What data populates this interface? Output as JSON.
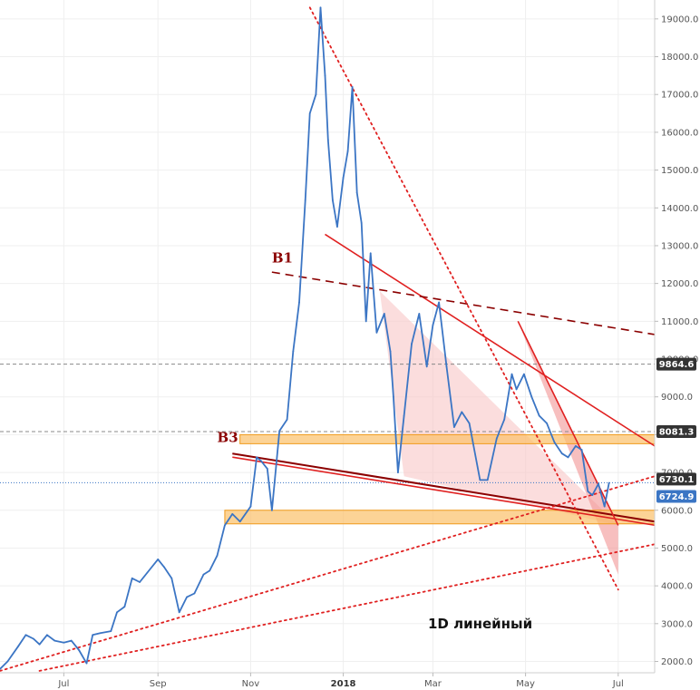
{
  "chart_data": {
    "type": "line",
    "title": "",
    "xlabel": "",
    "ylabel": "",
    "note": "1D  линейный",
    "ylim": [
      1700,
      19500
    ],
    "y_ticks": [
      2000,
      3000,
      4000,
      5000,
      6000,
      7000,
      8000,
      9000,
      10000,
      11000,
      12000,
      13000,
      14000,
      15000,
      16000,
      17000,
      18000,
      19000
    ],
    "y_tick_labels": [
      "2000.0",
      "3000.0",
      "4000.0",
      "5000.0",
      "6000.0",
      "7000.0",
      "8000.0",
      "9000.0",
      "10000.0",
      "11000.0",
      "12000.0",
      "13000.0",
      "14000.0",
      "15000.0",
      "16000.0",
      "17000.0",
      "18000.0",
      "19000.0"
    ],
    "x_range": [
      "2017-05-20",
      "2018-07-25"
    ],
    "x_ticks": [
      {
        "date": "2017-07-01",
        "label": "Jul",
        "bold": false
      },
      {
        "date": "2017-09-01",
        "label": "Sep",
        "bold": false
      },
      {
        "date": "2017-11-01",
        "label": "Nov",
        "bold": false
      },
      {
        "date": "2018-01-01",
        "label": "2018",
        "bold": true
      },
      {
        "date": "2018-03-01",
        "label": "Mar",
        "bold": false
      },
      {
        "date": "2018-05-01",
        "label": "May",
        "bold": false
      },
      {
        "date": "2018-07-01",
        "label": "Jul",
        "bold": false
      }
    ],
    "grid": true,
    "colors": {
      "price": "#3b75c4",
      "trend_red": "#e02020",
      "dark_red": "#8b0000",
      "zone_fill": "#fbc16a",
      "zone_border": "#f09a1c",
      "wedge_fill": "#f8c6c6",
      "channel_fill": "#f08a8a",
      "badge_dark": "#333333",
      "badge_blue": "#3b75c4"
    },
    "series": [
      {
        "x": [
          "2017-05-20",
          "2017-05-25",
          "2017-06-01",
          "2017-06-06",
          "2017-06-11",
          "2017-06-15",
          "2017-06-20",
          "2017-06-25",
          "2017-07-01",
          "2017-07-06",
          "2017-07-11",
          "2017-07-16",
          "2017-07-20",
          "2017-07-25",
          "2017-08-01",
          "2017-08-05",
          "2017-08-10",
          "2017-08-15",
          "2017-08-20",
          "2017-08-25",
          "2017-09-01",
          "2017-09-05",
          "2017-09-10",
          "2017-09-15",
          "2017-09-20",
          "2017-09-25",
          "2017-10-01",
          "2017-10-05",
          "2017-10-10",
          "2017-10-15",
          "2017-10-20",
          "2017-10-25",
          "2017-11-01",
          "2017-11-05",
          "2017-11-08",
          "2017-11-12",
          "2017-11-15",
          "2017-11-20",
          "2017-11-25",
          "2017-11-29",
          "2017-12-03",
          "2017-12-07",
          "2017-12-10",
          "2017-12-14",
          "2017-12-17",
          "2017-12-20",
          "2017-12-22",
          "2017-12-25",
          "2017-12-28",
          "2018-01-01",
          "2018-01-04",
          "2018-01-07",
          "2018-01-10",
          "2018-01-13",
          "2018-01-16",
          "2018-01-19",
          "2018-01-23",
          "2018-01-28",
          "2018-02-01",
          "2018-02-03",
          "2018-02-06",
          "2018-02-10",
          "2018-02-15",
          "2018-02-20",
          "2018-02-25",
          "2018-03-01",
          "2018-03-05",
          "2018-03-10",
          "2018-03-15",
          "2018-03-20",
          "2018-03-25",
          "2018-04-01",
          "2018-04-06",
          "2018-04-12",
          "2018-04-17",
          "2018-04-22",
          "2018-04-25",
          "2018-04-30",
          "2018-05-05",
          "2018-05-10",
          "2018-05-15",
          "2018-05-20",
          "2018-05-25",
          "2018-05-29",
          "2018-06-03",
          "2018-06-07",
          "2018-06-11",
          "2018-06-14",
          "2018-06-18",
          "2018-06-22",
          "2018-06-25"
        ],
        "y": [
          1800,
          2000,
          2400,
          2700,
          2600,
          2450,
          2700,
          2550,
          2500,
          2550,
          2300,
          1950,
          2700,
          2750,
          2800,
          3300,
          3450,
          4200,
          4100,
          4350,
          4700,
          4500,
          4200,
          3300,
          3700,
          3800,
          4300,
          4400,
          4800,
          5600,
          5900,
          5700,
          6100,
          7400,
          7300,
          7100,
          6000,
          8100,
          8400,
          10200,
          11500,
          14200,
          16500,
          17000,
          19300,
          17500,
          15800,
          14200,
          13500,
          14800,
          15500,
          17200,
          14400,
          13600,
          11000,
          12800,
          10700,
          11200,
          10200,
          9000,
          7000,
          8500,
          10400,
          11200,
          9800,
          10900,
          11500,
          9800,
          8200,
          8600,
          8300,
          6800,
          6800,
          7900,
          8400,
          9600,
          9200,
          9600,
          9000,
          8500,
          8300,
          7800,
          7500,
          7400,
          7700,
          7600,
          6500,
          6400,
          6700,
          6100,
          6724.9
        ]
      }
    ],
    "price_levels": [
      {
        "value": 9864.6,
        "label": "9864.6",
        "style": "dashed-grey",
        "badge": "dark"
      },
      {
        "value": 8081.3,
        "label": "8081.3",
        "style": "dashed-grey",
        "badge": "dark"
      },
      {
        "value": 6730.1,
        "label": "6730.1",
        "style": "dotted-blue",
        "badge": "dark"
      },
      {
        "value": 6724.9,
        "label": "6724.9",
        "style": "none",
        "badge": "blue"
      }
    ],
    "zones": [
      {
        "x": [
          "2017-10-25",
          "2018-07-25"
        ],
        "y": [
          7760,
          8000
        ]
      },
      {
        "x": [
          "2017-10-15",
          "2018-07-25"
        ],
        "y": [
          5640,
          6000
        ]
      }
    ],
    "trend_lines": [
      {
        "id": "descending-resistance",
        "x": [
          "2017-12-20",
          "2018-07-25"
        ],
        "y": [
          13300,
          7700
        ],
        "style": "solid-red"
      },
      {
        "id": "b3-support",
        "x": [
          "2017-10-20",
          "2018-07-25"
        ],
        "y": [
          7500,
          5700
        ],
        "style": "solid-double"
      },
      {
        "id": "b1-dashed",
        "x": [
          "2017-11-15",
          "2018-07-25"
        ],
        "y": [
          12300,
          10650
        ],
        "style": "dashed-darkred"
      },
      {
        "id": "peak-dotted",
        "x": [
          "2017-12-10",
          "2018-07-01"
        ],
        "y": [
          19300,
          3900
        ],
        "style": "dotted-red"
      },
      {
        "id": "lower-dotted-1",
        "x": [
          "2017-05-20",
          "2018-07-25"
        ],
        "y": [
          1750,
          6900
        ],
        "style": "dotted-red"
      },
      {
        "id": "lower-dotted-2",
        "x": [
          "2017-06-15",
          "2018-07-25"
        ],
        "y": [
          1750,
          5100
        ],
        "style": "dotted-red"
      },
      {
        "id": "channel-upper",
        "x": [
          "2018-04-26",
          "2018-07-01"
        ],
        "y": [
          11000,
          5600
        ],
        "style": "solid-red"
      }
    ],
    "wedge_region": [
      {
        "x": "2018-01-25",
        "y": 11800
      },
      {
        "x": "2018-07-01",
        "y": 5600
      },
      {
        "x": "2018-02-10",
        "y": 6900
      }
    ],
    "channel_region": [
      {
        "x": "2018-04-26",
        "y": 11000
      },
      {
        "x": "2018-07-01",
        "y": 5600
      },
      {
        "x": "2018-07-01",
        "y": 4300
      }
    ],
    "annotations": [
      {
        "text": "B1",
        "x": "2017-11-15",
        "y": 12550,
        "color": "#8b0000"
      },
      {
        "text": "B3",
        "x": "2017-10-10",
        "y": 7800,
        "color": "#8b0000"
      }
    ]
  }
}
